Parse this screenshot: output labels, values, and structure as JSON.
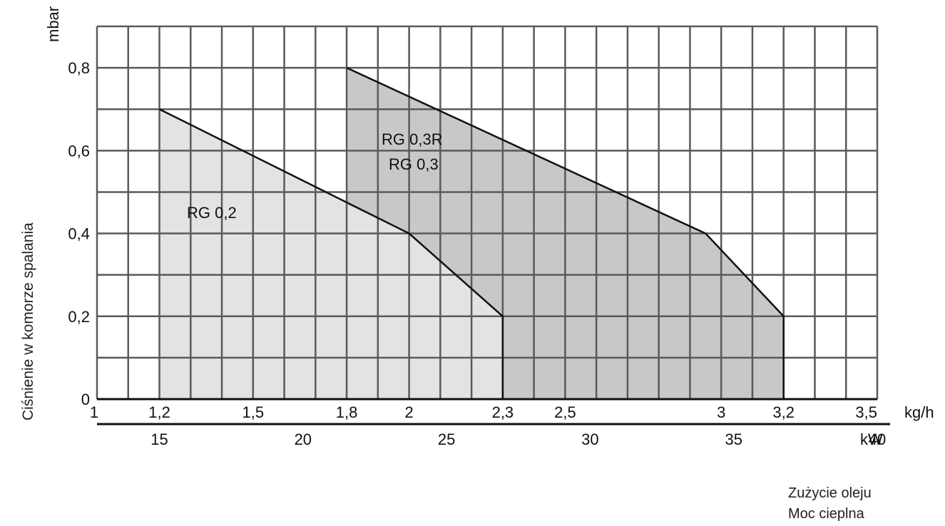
{
  "chart_data": {
    "type": "area",
    "xlabel_kgh": "kg/h",
    "xlabel_kw": "kW",
    "ylabel": "Ciśnienie w komorze spalania",
    "yunit": "mbar",
    "xlim": [
      1,
      3.5
    ],
    "ylim": [
      0,
      0.9
    ],
    "x_ticks_kgh": [
      {
        "value": 1,
        "label": "1"
      },
      {
        "value": 1.2,
        "label": "1,2"
      },
      {
        "value": 1.5,
        "label": "1,5"
      },
      {
        "value": 1.8,
        "label": "1,8"
      },
      {
        "value": 2,
        "label": "2"
      },
      {
        "value": 2.3,
        "label": "2,3"
      },
      {
        "value": 2.5,
        "label": "2,5"
      },
      {
        "value": 3,
        "label": "3"
      },
      {
        "value": 3.2,
        "label": "3,2"
      },
      {
        "value": 3.5,
        "label": "3,5"
      }
    ],
    "x_ticks_kw": [
      {
        "value": 15,
        "label": "15"
      },
      {
        "value": 20,
        "label": "20"
      },
      {
        "value": 25,
        "label": "25"
      },
      {
        "value": 30,
        "label": "30"
      },
      {
        "value": 35,
        "label": "35"
      },
      {
        "value": 40,
        "label": "40"
      }
    ],
    "y_ticks": [
      {
        "value": 0,
        "label": "0"
      },
      {
        "value": 0.2,
        "label": "0,2"
      },
      {
        "value": 0.4,
        "label": "0,4"
      },
      {
        "value": 0.6,
        "label": "0,6"
      },
      {
        "value": 0.8,
        "label": "0,8"
      }
    ],
    "grid": true,
    "series": [
      {
        "name": "RG 0,2",
        "color": "#e3e3e3",
        "points": [
          [
            1.2,
            0
          ],
          [
            1.2,
            0.7
          ],
          [
            2.0,
            0.4
          ],
          [
            2.3,
            0.2
          ],
          [
            2.3,
            0
          ]
        ]
      },
      {
        "name": "RG 0,3R / RG 0,3",
        "labels": [
          "RG 0,3R",
          "RG 0,3"
        ],
        "color": "#c8c8c8",
        "points": [
          [
            1.8,
            0.8
          ],
          [
            1.8,
            0.47
          ],
          [
            2.0,
            0.4
          ],
          [
            2.3,
            0.2
          ],
          [
            2.3,
            0
          ],
          [
            3.2,
            0
          ],
          [
            3.2,
            0.2
          ],
          [
            2.95,
            0.4
          ],
          [
            1.8,
            0.8
          ]
        ]
      }
    ]
  },
  "footer": {
    "line1": "Zużycie oleju",
    "line2": "Moc cieplna"
  }
}
